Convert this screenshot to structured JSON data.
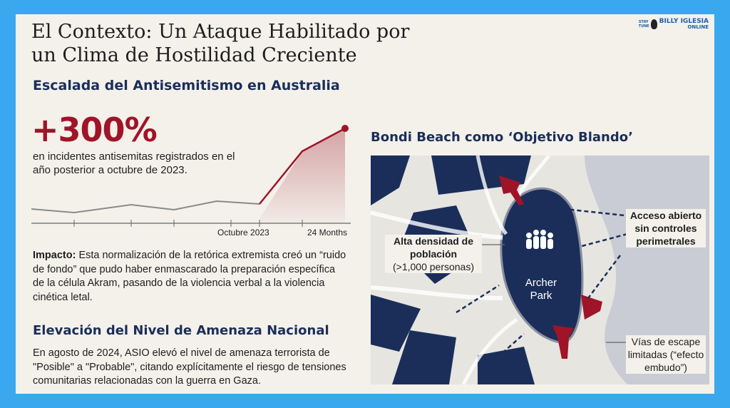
{
  "title": "El Contexto: Un Ataque Habilitado por un Clima de Hostilidad Creciente",
  "logo": {
    "small": "STAY TUNE",
    "name": "BILLY IGLESIA",
    "sub": "ONLINE"
  },
  "section1": {
    "heading": "Escalada del Antisemitismo en Australia",
    "stat": "+300%",
    "stat_description": "en incidentes antisemitas registrados en el año posterior a octubre de 2023."
  },
  "chart_data": {
    "type": "line",
    "x_ticks": [
      "Octubre 2023",
      "24 Months"
    ],
    "highlight_color": "#a01428",
    "baseline_color": "#8a8a8a"
  },
  "impact": {
    "label": "Impacto:",
    "text": "Esta normalización de la retórica extremista creó un “ruido de fondo” que pudo haber enmascarado la preparación específica de la célula Akram, pasando de la violencia verbal a la violencia cinética letal."
  },
  "section2": {
    "heading": "Elevación del Nivel de Amenaza Nacional",
    "text": "En agosto de 2024, ASIO elevó el nivel de amenaza terrorista de \"Posible\" a \"Probable\", citando explícitamente el riesgo de tensiones comunitarias relacionadas con la guerra en Gaza."
  },
  "map": {
    "heading": "Bondi Beach como ‘Objetivo Blando’",
    "density_title": "Alta densidad de población",
    "density_sub": "(>1,000 personas)",
    "access": "Acceso abierto sin controles perimetrales",
    "escape": "Vías de escape limitadas (“efecto embudo”)",
    "park_name": "Archer Park",
    "colors": {
      "navy": "#1b2e5a",
      "red": "#a01428",
      "water": "#c9ccd4"
    }
  }
}
